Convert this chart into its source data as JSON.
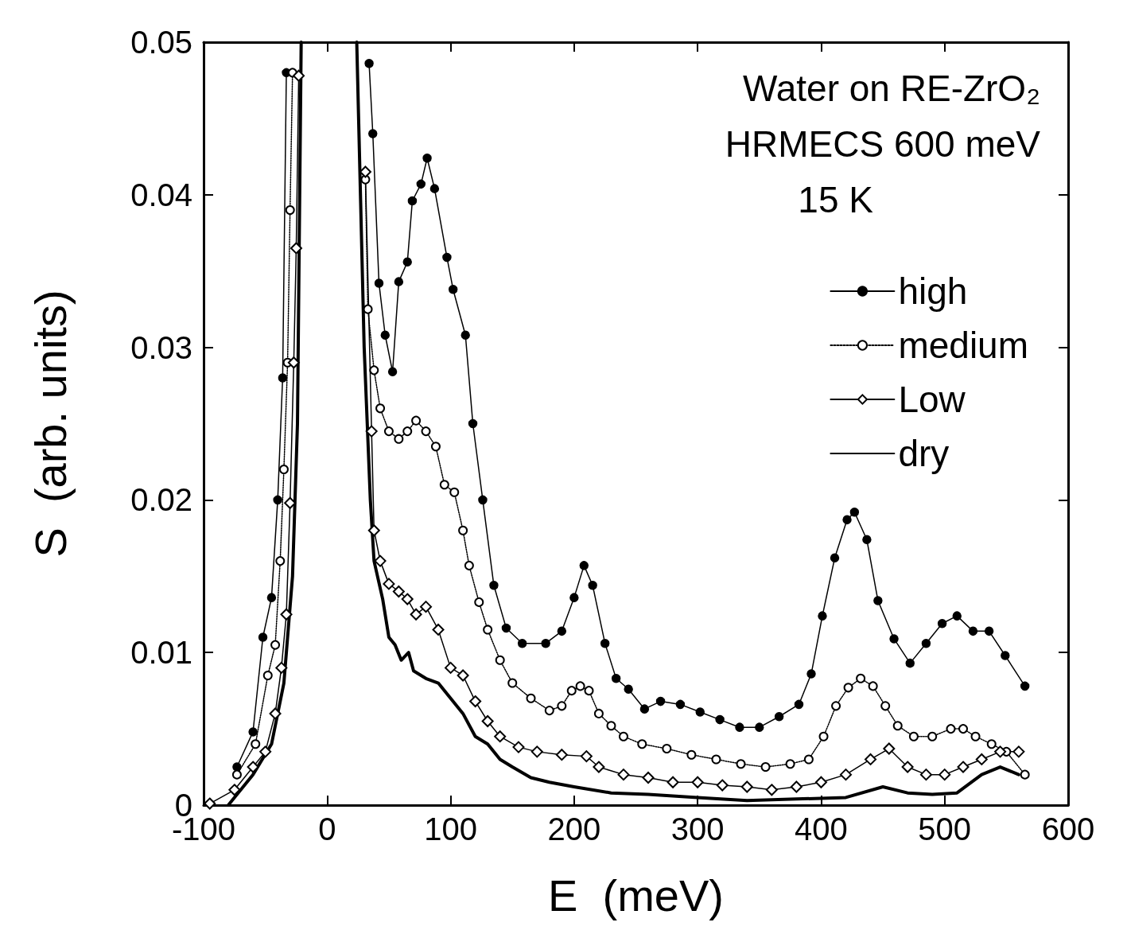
{
  "chart_data": {
    "type": "line",
    "xlabel": "E  (meV)",
    "ylabel": "S  (arb. units)",
    "annotations": [
      "Water on RE-ZrO₂",
      "HRMECS 600 meV",
      "15 K"
    ],
    "xlim": [
      -100,
      600
    ],
    "xticks": [
      -100,
      0,
      100,
      200,
      300,
      400,
      500,
      600
    ],
    "ylim": [
      0,
      0.05
    ],
    "yticks": [
      0,
      0.01,
      0.02,
      0.03,
      0.04,
      0.05
    ],
    "legend": "top right",
    "series": [
      {
        "name": "high",
        "color": "#000000",
        "marker": "circle",
        "line_style": "solid",
        "x": [
          -73,
          -60,
          -52,
          -45,
          -40,
          -36,
          -33,
          0,
          34,
          37,
          42,
          47,
          53,
          58,
          65,
          69,
          76,
          81,
          87,
          97,
          102,
          112,
          118,
          126,
          135,
          145,
          158,
          177,
          190,
          200,
          208,
          215,
          225,
          234,
          244,
          257,
          270,
          286,
          302,
          318,
          334,
          350,
          366,
          382,
          392,
          401,
          411,
          421,
          427,
          437,
          446,
          459,
          472,
          485,
          498,
          510,
          523,
          536,
          549,
          565
        ],
        "values": [
          0.0025,
          0.0048,
          0.011,
          0.0136,
          0.02,
          0.028,
          0.048,
          null,
          0.0486,
          0.044,
          0.0342,
          0.0308,
          0.0284,
          0.0343,
          0.0356,
          0.0396,
          0.0407,
          0.0424,
          0.0404,
          0.0359,
          0.0338,
          0.0308,
          0.025,
          0.02,
          0.0144,
          0.0116,
          0.0106,
          0.0106,
          0.0114,
          0.0136,
          0.0157,
          0.0144,
          0.0106,
          0.0083,
          0.0076,
          0.0063,
          0.0068,
          0.0066,
          0.0061,
          0.0056,
          0.0051,
          0.0051,
          0.0058,
          0.0066,
          0.0086,
          0.0124,
          0.0162,
          0.0187,
          0.0192,
          0.0174,
          0.0134,
          0.0109,
          0.0093,
          0.0106,
          0.0119,
          0.0124,
          0.0114,
          0.0114,
          0.0098,
          0.0078
        ]
      },
      {
        "name": "medium",
        "color": "#000000",
        "marker": "circle",
        "line_style": "dotted",
        "x": [
          -73,
          -58,
          -48,
          -42,
          -38,
          -35,
          -32,
          -30,
          -28,
          0,
          31,
          33,
          38,
          43,
          50,
          58,
          65,
          72,
          80,
          88,
          95,
          103,
          110,
          115,
          123,
          130,
          140,
          150,
          165,
          180,
          190,
          198,
          205,
          212,
          220,
          230,
          240,
          255,
          275,
          295,
          315,
          335,
          355,
          375,
          390,
          402,
          412,
          422,
          432,
          442,
          452,
          462,
          475,
          490,
          505,
          515,
          525,
          538,
          550,
          565
        ],
        "values": [
          0.002,
          0.004,
          0.0085,
          0.0105,
          0.016,
          0.022,
          0.029,
          0.039,
          0.048,
          null,
          0.041,
          0.0325,
          0.0285,
          0.026,
          0.0245,
          0.024,
          0.0245,
          0.0252,
          0.0245,
          0.0235,
          0.021,
          0.0205,
          0.018,
          0.0157,
          0.0133,
          0.0115,
          0.0095,
          0.008,
          0.007,
          0.0062,
          0.0065,
          0.0075,
          0.0078,
          0.0075,
          0.006,
          0.0052,
          0.0045,
          0.004,
          0.0037,
          0.0033,
          0.003,
          0.0027,
          0.0025,
          0.0027,
          0.003,
          0.0045,
          0.0065,
          0.0077,
          0.0083,
          0.0078,
          0.0065,
          0.0052,
          0.0045,
          0.0045,
          0.005,
          0.005,
          0.0045,
          0.004,
          0.0035,
          0.002
        ]
      },
      {
        "name": "Low",
        "color": "#000000",
        "marker": "diamond",
        "line_style": "solid",
        "x": [
          -95,
          -75,
          -60,
          -50,
          -42,
          -37,
          -33,
          -30,
          -27,
          -25,
          -23,
          0,
          31,
          36,
          38,
          43,
          50,
          58,
          65,
          72,
          80,
          90,
          100,
          110,
          120,
          130,
          140,
          155,
          170,
          190,
          210,
          220,
          240,
          260,
          280,
          300,
          320,
          340,
          360,
          380,
          400,
          420,
          440,
          455,
          470,
          485,
          500,
          515,
          530,
          545,
          560
        ],
        "values": [
          0.0001,
          0.001,
          0.0025,
          0.0035,
          0.006,
          0.009,
          0.0125,
          0.0198,
          0.029,
          0.0365,
          0.0478,
          null,
          0.0415,
          0.0245,
          0.018,
          0.016,
          0.0145,
          0.014,
          0.0135,
          0.0125,
          0.013,
          0.0115,
          0.009,
          0.0085,
          0.0068,
          0.0055,
          0.0045,
          0.0038,
          0.0035,
          0.0033,
          0.0032,
          0.0025,
          0.002,
          0.0018,
          0.0015,
          0.0015,
          0.0013,
          0.0012,
          0.001,
          0.0012,
          0.0015,
          0.002,
          0.003,
          0.0037,
          0.0025,
          0.002,
          0.002,
          0.0025,
          0.003,
          0.0035,
          0.0035
        ]
      },
      {
        "name": "dry",
        "color": "#000000",
        "marker": "none",
        "line_style": "solid",
        "x": [
          -80,
          -60,
          -45,
          -35,
          -28,
          -24,
          -21,
          0,
          24,
          30,
          35,
          38,
          45,
          50,
          55,
          60,
          66,
          70,
          80,
          90,
          100,
          110,
          120,
          130,
          140,
          150,
          165,
          180,
          200,
          230,
          260,
          300,
          340,
          380,
          420,
          450,
          470,
          490,
          510,
          530,
          545,
          560
        ],
        "values": [
          0,
          0.002,
          0.004,
          0.008,
          0.015,
          0.025,
          0.05,
          null,
          0.05,
          0.03,
          0.02,
          0.016,
          0.0135,
          0.011,
          0.0105,
          0.0095,
          0.01,
          0.0088,
          0.0083,
          0.008,
          0.007,
          0.006,
          0.0045,
          0.004,
          0.003,
          0.0025,
          0.0018,
          0.0015,
          0.0012,
          0.0008,
          0.0007,
          0.0005,
          0.0003,
          0.0004,
          0.0005,
          0.0012,
          0.0008,
          0.0007,
          0.0008,
          0.002,
          0.0025,
          0.002
        ]
      }
    ]
  }
}
